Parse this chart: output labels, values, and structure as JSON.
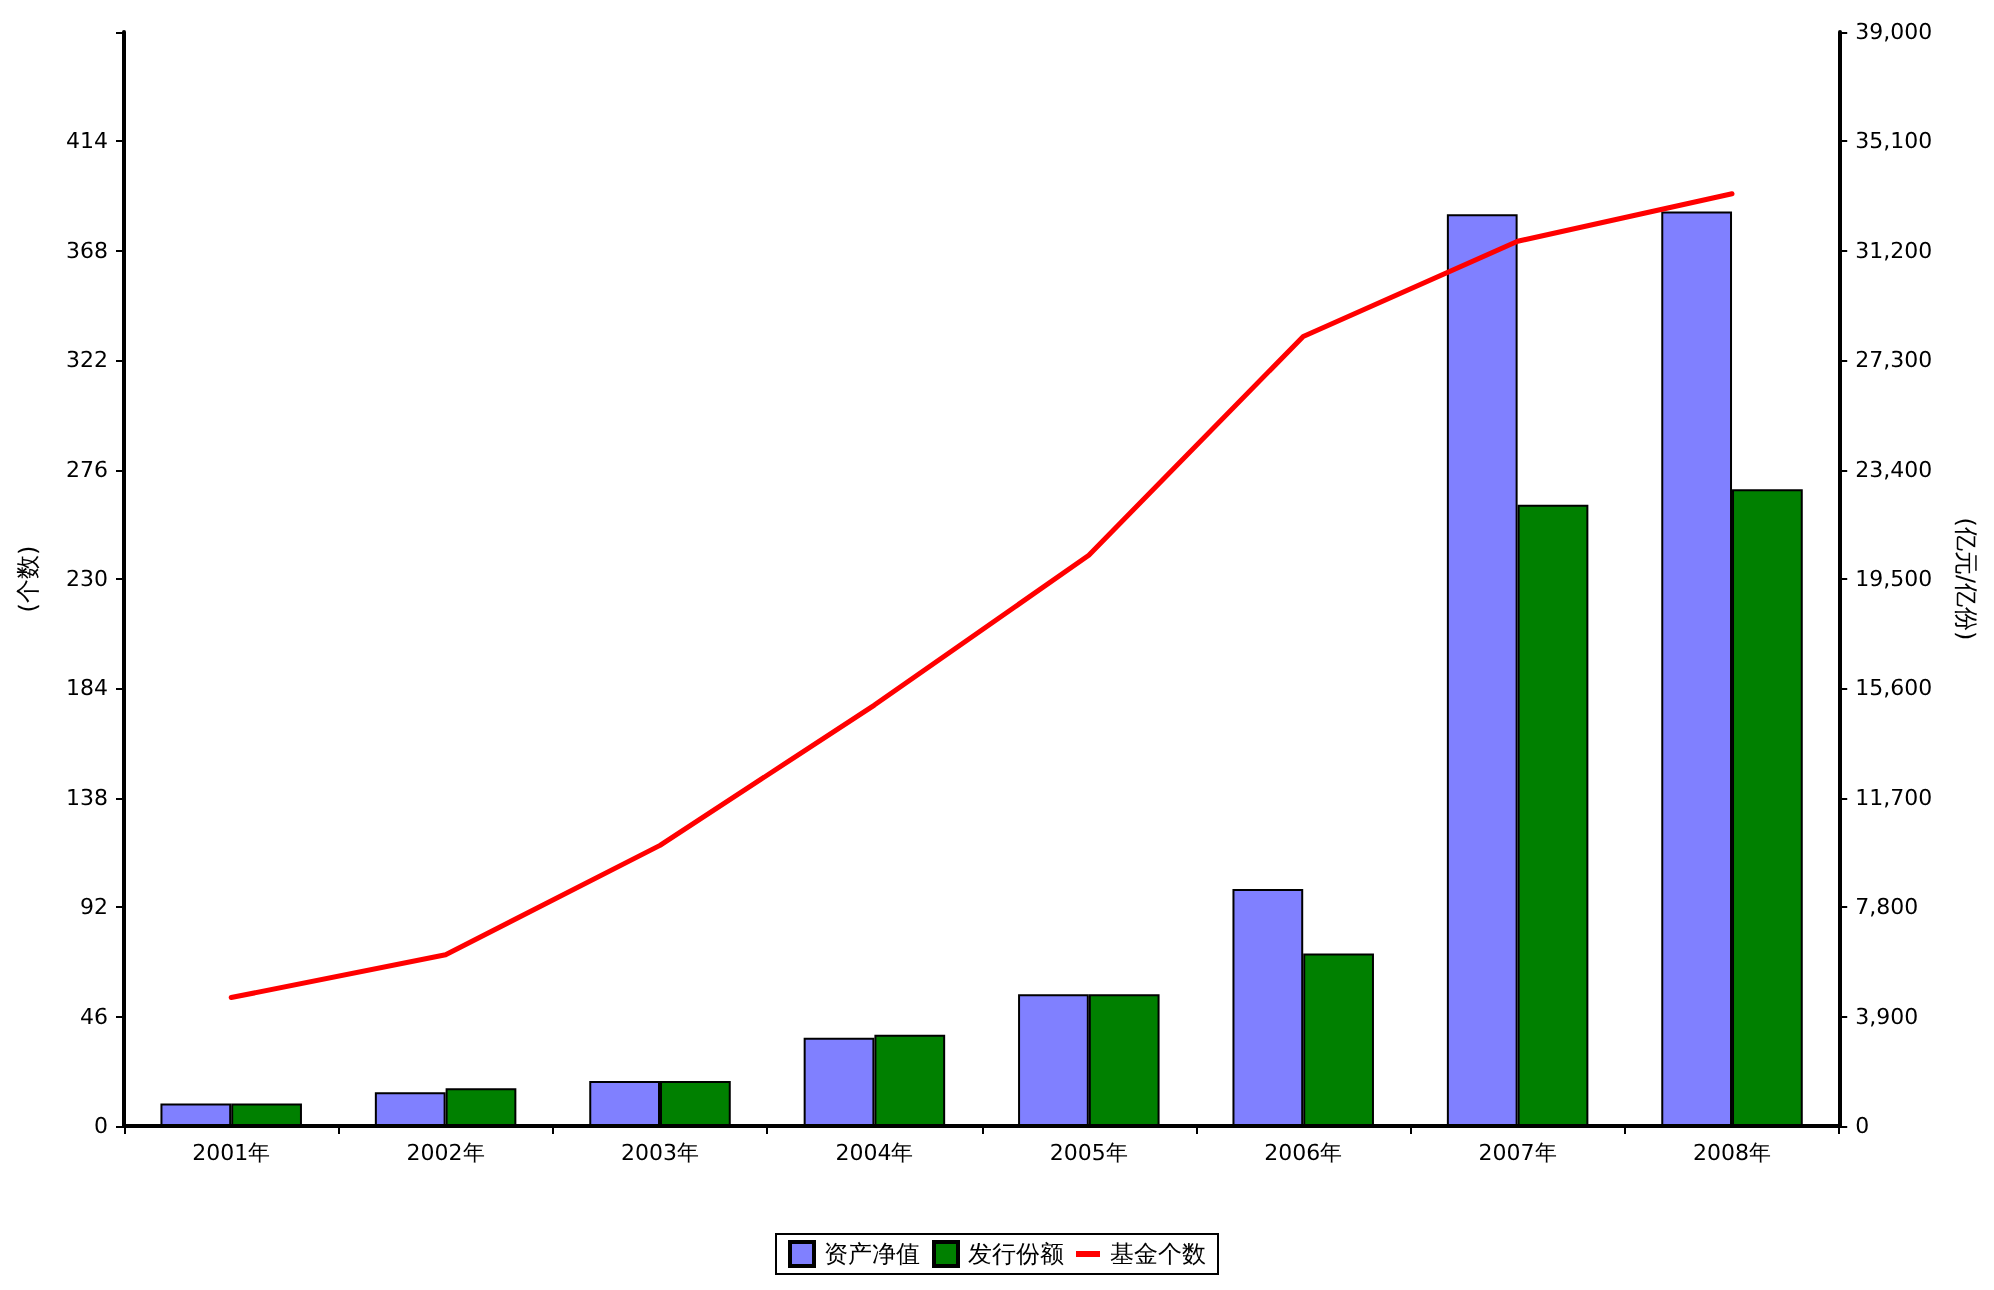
{
  "chart_data": {
    "type": "bar",
    "ylabel": "(个数)",
    "y2label": "(亿元/亿份)",
    "categories": [
      "2001年",
      "2002年",
      "2003年",
      "2004年",
      "2005年",
      "2006年",
      "2007年",
      "2008年"
    ],
    "series": [
      {
        "name": "资产净值",
        "axis": "y2",
        "color": "#8080ff",
        "values": [
          800,
          1200,
          1600,
          3150,
          4700,
          8450,
          32500,
          32600
        ]
      },
      {
        "name": "发行份额",
        "axis": "y2",
        "color": "#008000",
        "values": [
          800,
          1350,
          1600,
          3250,
          4700,
          6150,
          22150,
          22700
        ]
      },
      {
        "name": "基金个数",
        "type": "line",
        "axis": "y",
        "color": "#ff0000",
        "values": [
          54,
          72,
          118,
          177,
          240,
          332,
          372,
          392
        ]
      }
    ],
    "ylim": [
      0,
      460
    ],
    "yticks": [
      0,
      46,
      92,
      138,
      184,
      230,
      276,
      322,
      368,
      414,
      {
        "value": 460,
        "label": null
      }
    ],
    "y2lim": [
      0,
      39000
    ],
    "y2ticks": [
      0,
      {
        "value": 3900,
        "label": "3,900"
      },
      {
        "value": 7800,
        "label": "7,800"
      },
      {
        "value": 11700,
        "label": "11,700"
      },
      {
        "value": 15600,
        "label": "15,600"
      },
      {
        "value": 19500,
        "label": "19,500"
      },
      {
        "value": 23400,
        "label": "23,400"
      },
      {
        "value": 27300,
        "label": "27,300"
      },
      {
        "value": 31200,
        "label": "31,200"
      },
      {
        "value": 35100,
        "label": "35,100"
      },
      {
        "value": 39000,
        "label": "39,000"
      }
    ],
    "grid": false,
    "legend": "bottom",
    "marker": "none",
    "line_style": "solid"
  }
}
